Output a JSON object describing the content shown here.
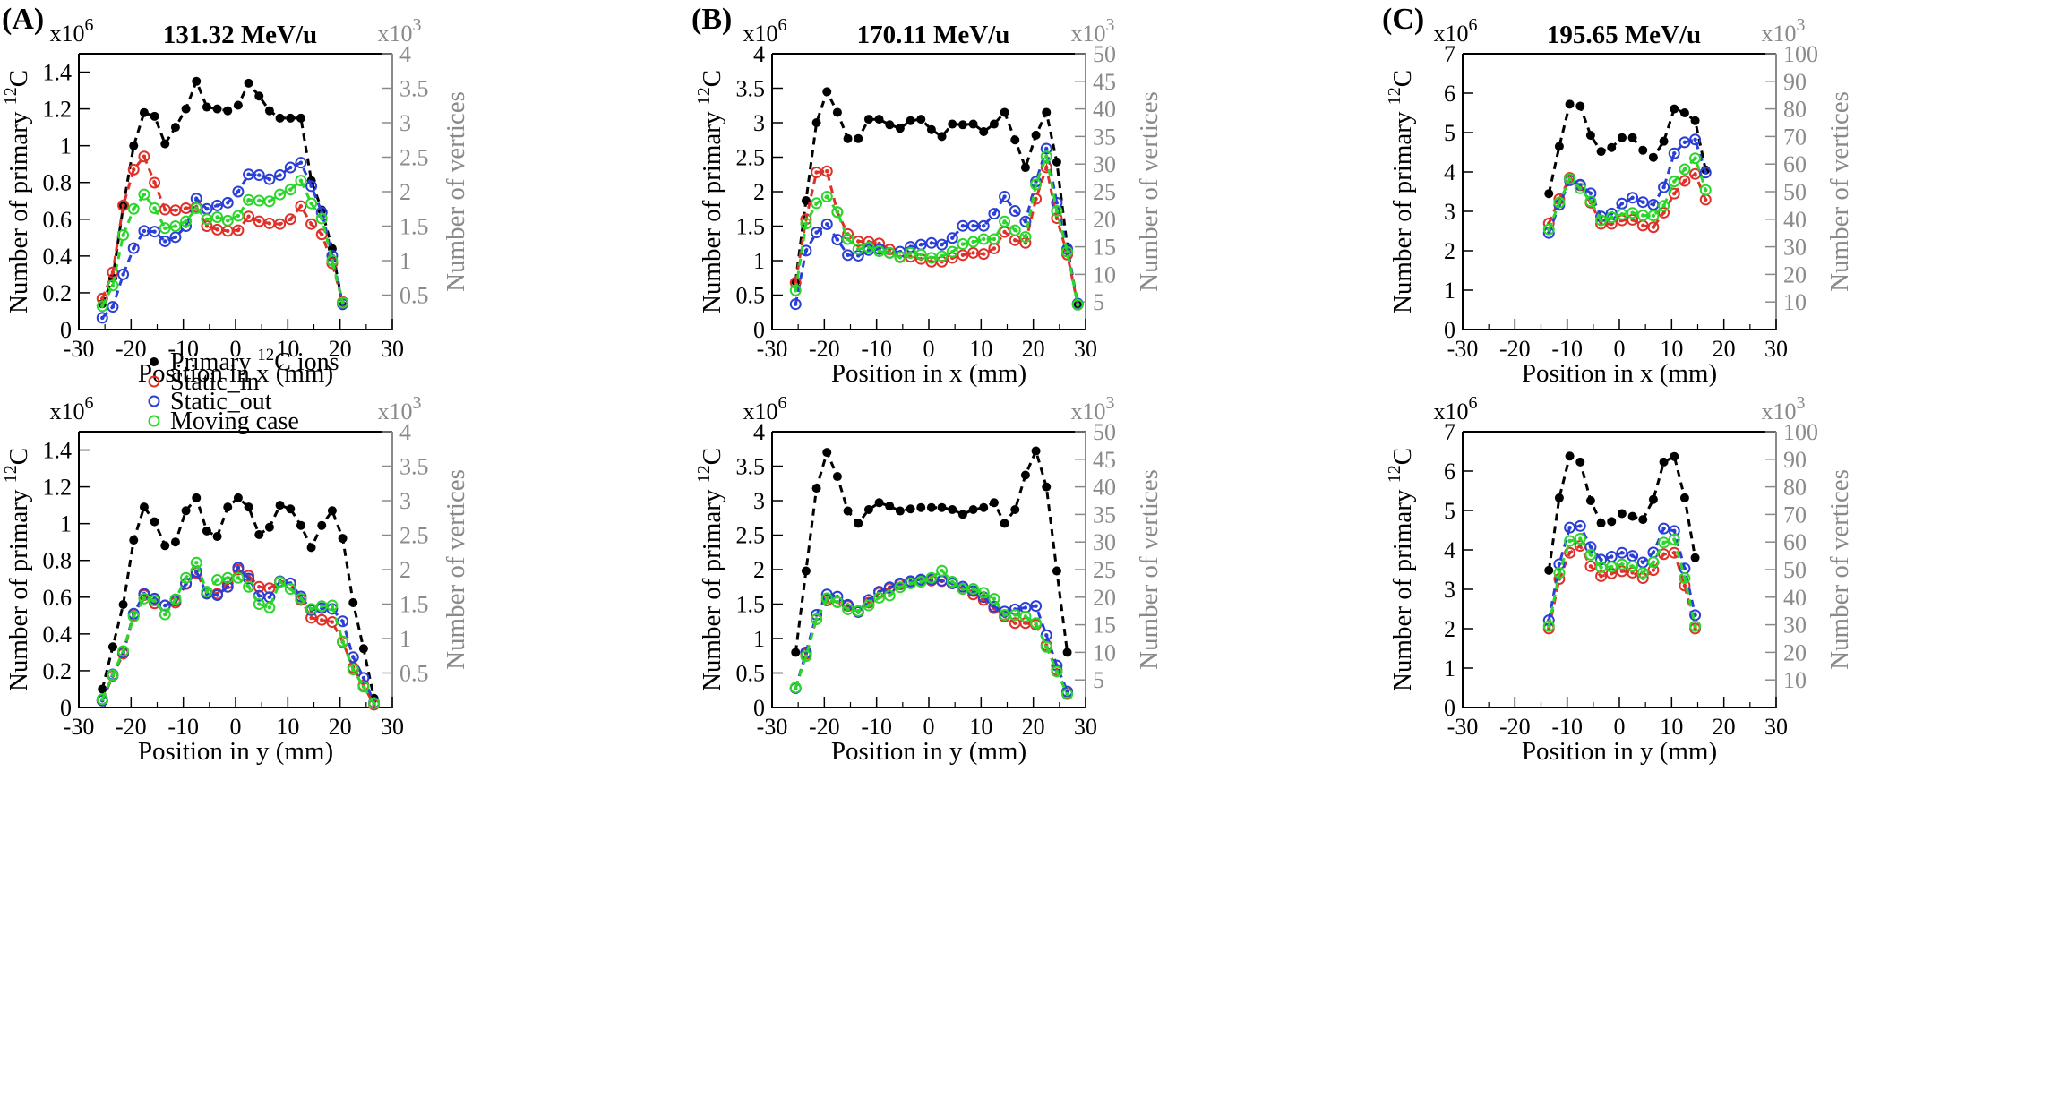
{
  "figure": {
    "panel_labels": [
      "(A)",
      "(B)",
      "(C)"
    ],
    "legend": [
      "Primary ¹²C ions",
      "Static_in",
      "Static_out",
      "Moving case"
    ],
    "colors": {
      "primary": "#000000",
      "static_in": "#e0302a",
      "static_out": "#2b3fd6",
      "moving": "#2bd62b",
      "right_axis": "#8a8a8a"
    }
  },
  "chart_data": [
    {
      "type": "line",
      "panel": "(A)",
      "title": "131.32 MeV/u",
      "xlabel": "Position in x (mm)",
      "ylabel": "Number of primary ¹²C",
      "y2label": "Number of vertices",
      "xlim": [
        -30,
        30
      ],
      "xticks": [
        -30,
        -20,
        -10,
        0,
        10,
        20,
        30
      ],
      "ylim": [
        0,
        1.5
      ],
      "yticks": [
        0,
        0.2,
        0.4,
        0.6,
        0.8,
        1,
        1.2,
        1.4
      ],
      "yexp": "x10⁶",
      "y2lim": [
        0,
        4
      ],
      "y2ticks": [
        0.5,
        1,
        1.5,
        2,
        2.5,
        3,
        3.5,
        4
      ],
      "y2exp": "x10³",
      "x": [
        -25.5,
        -23.5,
        -21.5,
        -19.5,
        -17.5,
        -15.5,
        -13.5,
        -11.5,
        -9.5,
        -7.5,
        -5.5,
        -3.5,
        -1.5,
        0.5,
        2.5,
        4.5,
        6.5,
        8.5,
        10.5,
        12.5,
        14.5,
        16.5,
        18.5,
        20.5
      ],
      "series": [
        {
          "name": "Primary ¹²C ions",
          "axis": "left",
          "values": [
            0.14,
            0.28,
            0.67,
            1.0,
            1.18,
            1.16,
            1.01,
            1.1,
            1.2,
            1.35,
            1.21,
            1.2,
            1.19,
            1.22,
            1.34,
            1.27,
            1.19,
            1.15,
            1.15,
            1.15,
            0.81,
            0.65,
            0.44,
            0.13
          ]
        },
        {
          "name": "Static_in",
          "axis": "right",
          "values": [
            0.45,
            0.83,
            1.8,
            2.32,
            2.51,
            2.13,
            1.74,
            1.73,
            1.76,
            1.78,
            1.5,
            1.45,
            1.43,
            1.44,
            1.64,
            1.57,
            1.54,
            1.53,
            1.6,
            1.79,
            1.53,
            1.38,
            0.96,
            0.4
          ]
        },
        {
          "name": "Static_out",
          "axis": "right",
          "values": [
            0.17,
            0.33,
            0.8,
            1.18,
            1.43,
            1.42,
            1.28,
            1.34,
            1.5,
            1.9,
            1.75,
            1.8,
            1.84,
            2.0,
            2.25,
            2.24,
            2.18,
            2.24,
            2.35,
            2.42,
            2.08,
            1.7,
            1.07,
            0.37
          ]
        },
        {
          "name": "Moving case",
          "axis": "right",
          "values": [
            0.34,
            0.64,
            1.37,
            1.75,
            1.96,
            1.76,
            1.47,
            1.5,
            1.57,
            1.76,
            1.6,
            1.63,
            1.58,
            1.65,
            1.88,
            1.87,
            1.86,
            1.96,
            2.03,
            2.16,
            1.83,
            1.61,
            1.0,
            0.39
          ]
        }
      ]
    },
    {
      "type": "line",
      "panel": "(B)",
      "title": "170.11 MeV/u",
      "xlabel": "Position in x (mm)",
      "ylabel": "Number of primary ¹²C",
      "y2label": "Number of vertices",
      "xlim": [
        -30,
        30
      ],
      "xticks": [
        -30,
        -20,
        -10,
        0,
        10,
        20,
        30
      ],
      "ylim": [
        0,
        4
      ],
      "yticks": [
        0,
        0.5,
        1,
        1.5,
        2,
        2.5,
        3,
        3.5,
        4
      ],
      "yexp": "x10⁶",
      "y2lim": [
        0,
        50
      ],
      "y2ticks": [
        5,
        10,
        15,
        20,
        25,
        30,
        35,
        40,
        45,
        50
      ],
      "y2exp": "x10³",
      "x": [
        -25.5,
        -23.5,
        -21.5,
        -19.5,
        -17.5,
        -15.5,
        -13.5,
        -11.5,
        -9.5,
        -7.5,
        -5.5,
        -3.5,
        -1.5,
        0.5,
        2.5,
        4.5,
        6.5,
        8.5,
        10.5,
        12.5,
        14.5,
        16.5,
        18.5,
        20.5,
        22.5,
        24.5,
        26.5,
        28.5
      ],
      "series": [
        {
          "name": "Primary ¹²C ions",
          "axis": "left",
          "values": [
            0.7,
            1.87,
            3.0,
            3.45,
            3.15,
            2.77,
            2.77,
            3.05,
            3.05,
            2.97,
            2.92,
            3.03,
            3.05,
            2.9,
            2.8,
            2.98,
            2.97,
            2.98,
            2.87,
            2.98,
            3.15,
            2.75,
            2.35,
            2.82,
            3.15,
            2.43,
            1.2,
            0.35
          ]
        },
        {
          "name": "Static_in",
          "axis": "right",
          "values": [
            8.5,
            20.0,
            28.5,
            28.7,
            21.3,
            17.3,
            16.0,
            15.9,
            15.6,
            14.5,
            13.2,
            13.2,
            12.8,
            12.3,
            12.3,
            13.0,
            13.5,
            13.9,
            13.7,
            14.7,
            17.7,
            16.2,
            15.7,
            23.7,
            29.4,
            20.2,
            13.6,
            4.5
          ]
        },
        {
          "name": "Static_out",
          "axis": "right",
          "values": [
            4.6,
            14.3,
            17.6,
            19.1,
            16.3,
            13.5,
            13.4,
            14.4,
            14.6,
            13.9,
            14.1,
            15.0,
            15.4,
            15.7,
            15.4,
            16.6,
            18.8,
            18.8,
            18.8,
            21.0,
            24.1,
            21.5,
            19.6,
            26.8,
            32.8,
            23.0,
            14.6,
            4.7
          ]
        },
        {
          "name": "Moving case",
          "axis": "right",
          "values": [
            7.1,
            19.2,
            22.9,
            24.1,
            21.3,
            16.4,
            14.6,
            14.9,
            14.2,
            13.9,
            13.1,
            13.9,
            13.6,
            13.0,
            13.3,
            14.1,
            15.5,
            15.9,
            16.4,
            16.4,
            19.6,
            18.0,
            16.8,
            26.3,
            31.4,
            21.5,
            14.1,
            4.5
          ]
        }
      ]
    },
    {
      "type": "line",
      "panel": "(C)",
      "title": "195.65 MeV/u",
      "xlabel": "Position in x (mm)",
      "ylabel": "Number of primary ¹²C",
      "y2label": "Number of vertices",
      "xlim": [
        -30,
        30
      ],
      "xticks": [
        -30,
        -20,
        -10,
        0,
        10,
        20,
        30
      ],
      "ylim": [
        0,
        7
      ],
      "yticks": [
        0,
        1,
        2,
        3,
        4,
        5,
        6,
        7
      ],
      "yexp": "x10⁶",
      "y2lim": [
        0,
        100
      ],
      "y2ticks": [
        10,
        20,
        30,
        40,
        50,
        60,
        70,
        80,
        90,
        100
      ],
      "y2exp": "x10³",
      "x": [
        -13.5,
        -11.5,
        -9.5,
        -7.5,
        -5.5,
        -3.5,
        -1.5,
        0.5,
        2.5,
        4.5,
        6.5,
        8.5,
        10.5,
        12.5,
        14.5,
        16.5
      ],
      "series": [
        {
          "name": "Primary ¹²C ions",
          "axis": "left",
          "values": [
            3.45,
            4.65,
            5.72,
            5.67,
            4.93,
            4.52,
            4.62,
            4.87,
            4.87,
            4.55,
            4.37,
            4.78,
            5.6,
            5.5,
            5.3,
            4.05
          ]
        },
        {
          "name": "Static_in",
          "axis": "right",
          "values": [
            38.5,
            47.3,
            55.0,
            52.3,
            46.0,
            38.3,
            38.3,
            39.6,
            39.8,
            37.7,
            37.1,
            42.4,
            49.3,
            53.9,
            56.4,
            47.1
          ]
        },
        {
          "name": "Static_out",
          "axis": "right",
          "values": [
            35.0,
            45.2,
            54.1,
            52.5,
            49.4,
            41.0,
            42.1,
            45.7,
            47.8,
            46.2,
            45.3,
            51.6,
            63.9,
            67.9,
            68.9,
            56.9
          ]
        },
        {
          "name": "Moving case",
          "axis": "right",
          "values": [
            36.3,
            46.1,
            54.6,
            51.2,
            46.5,
            39.6,
            40.7,
            41.8,
            42.3,
            41.4,
            41.3,
            44.9,
            53.7,
            58.1,
            62.1,
            50.6
          ]
        }
      ]
    },
    {
      "type": "line",
      "panel": "(A)",
      "title": "",
      "xlabel": "Position in y (mm)",
      "ylabel": "Number of primary ¹²C",
      "y2label": "Number of vertices",
      "xlim": [
        -30,
        30
      ],
      "xticks": [
        -30,
        -20,
        -10,
        0,
        10,
        20,
        30
      ],
      "ylim": [
        0,
        1.5
      ],
      "yticks": [
        0,
        0.2,
        0.4,
        0.6,
        0.8,
        1,
        1.2,
        1.4
      ],
      "yexp": "x10⁶",
      "y2lim": [
        0,
        4
      ],
      "y2ticks": [
        0.5,
        1,
        1.5,
        2,
        2.5,
        3,
        3.5,
        4
      ],
      "y2exp": "x10³",
      "x": [
        -25.5,
        -23.5,
        -21.5,
        -19.5,
        -17.5,
        -15.5,
        -13.5,
        -11.5,
        -9.5,
        -7.5,
        -5.5,
        -3.5,
        -1.5,
        0.5,
        2.5,
        4.5,
        6.5,
        8.5,
        10.5,
        12.5,
        14.5,
        16.5,
        18.5,
        20.5,
        22.5,
        24.5,
        26.5
      ],
      "series": [
        {
          "name": "Primary ¹²C ions",
          "axis": "left",
          "values": [
            0.1,
            0.33,
            0.56,
            0.91,
            1.09,
            1.01,
            0.88,
            0.9,
            1.07,
            1.14,
            0.96,
            0.93,
            1.09,
            1.14,
            1.09,
            0.94,
            0.98,
            1.1,
            1.08,
            0.99,
            0.87,
            0.99,
            1.07,
            0.92,
            0.57,
            0.32,
            0.05
          ]
        },
        {
          "name": "Static_in",
          "axis": "right",
          "values": [
            0.1,
            0.46,
            0.78,
            1.33,
            1.63,
            1.51,
            1.48,
            1.52,
            1.79,
            1.95,
            1.67,
            1.65,
            1.8,
            2.0,
            1.91,
            1.75,
            1.73,
            1.83,
            1.8,
            1.56,
            1.3,
            1.27,
            1.24,
            0.95,
            0.58,
            0.32,
            0.04
          ]
        },
        {
          "name": "Static_out",
          "axis": "right",
          "values": [
            0.1,
            0.48,
            0.8,
            1.36,
            1.65,
            1.58,
            1.48,
            1.55,
            1.8,
            1.97,
            1.65,
            1.63,
            1.75,
            2.03,
            1.87,
            1.62,
            1.6,
            1.83,
            1.8,
            1.61,
            1.41,
            1.44,
            1.43,
            1.25,
            0.73,
            0.43,
            0.07
          ]
        },
        {
          "name": "Moving case",
          "axis": "right",
          "values": [
            0.12,
            0.47,
            0.82,
            1.32,
            1.58,
            1.55,
            1.35,
            1.57,
            1.88,
            2.1,
            1.68,
            1.85,
            1.88,
            1.88,
            1.75,
            1.5,
            1.45,
            1.82,
            1.72,
            1.58,
            1.43,
            1.47,
            1.48,
            0.96,
            0.55,
            0.3,
            0.06
          ]
        }
      ]
    },
    {
      "type": "line",
      "panel": "(B)",
      "title": "",
      "xlabel": "Position in y (mm)",
      "ylabel": "Number of primary ¹²C",
      "y2label": "Number of vertices",
      "xlim": [
        -30,
        30
      ],
      "xticks": [
        -30,
        -20,
        -10,
        0,
        10,
        20,
        30
      ],
      "ylim": [
        0,
        4
      ],
      "yticks": [
        0,
        0.5,
        1,
        1.5,
        2,
        2.5,
        3,
        3.5,
        4
      ],
      "yexp": "x10⁶",
      "y2lim": [
        0,
        50
      ],
      "y2ticks": [
        5,
        10,
        15,
        20,
        25,
        30,
        35,
        40,
        45,
        50
      ],
      "y2exp": "x10³",
      "x": [
        -25.5,
        -23.5,
        -21.5,
        -19.5,
        -17.5,
        -15.5,
        -13.5,
        -11.5,
        -9.5,
        -7.5,
        -5.5,
        -3.5,
        -1.5,
        0.5,
        2.5,
        4.5,
        6.5,
        8.5,
        10.5,
        12.5,
        14.5,
        16.5,
        18.5,
        20.5,
        22.5,
        24.5,
        26.5
      ],
      "series": [
        {
          "name": "Primary ¹²C ions",
          "axis": "left",
          "values": [
            0.8,
            1.98,
            3.18,
            3.7,
            3.35,
            2.85,
            2.67,
            2.87,
            2.97,
            2.92,
            2.85,
            2.88,
            2.9,
            2.9,
            2.9,
            2.87,
            2.8,
            2.87,
            2.9,
            2.97,
            2.67,
            2.87,
            3.37,
            3.72,
            3.2,
            1.98,
            0.8
          ]
        },
        {
          "name": "Static_in",
          "axis": "right",
          "values": [
            3.5,
            9.7,
            16.0,
            19.4,
            19.1,
            18.4,
            17.3,
            19.0,
            20.8,
            21.6,
            22.3,
            22.6,
            23.0,
            23.0,
            22.9,
            22.5,
            21.5,
            20.5,
            19.5,
            18.0,
            16.5,
            15.3,
            15.3,
            15.0,
            11.3,
            6.8,
            2.5
          ]
        },
        {
          "name": "Static_out",
          "axis": "right",
          "values": [
            3.5,
            10.0,
            16.8,
            20.5,
            20.1,
            18.6,
            17.3,
            19.5,
            21.0,
            21.8,
            22.5,
            22.9,
            23.2,
            23.2,
            23.0,
            22.5,
            21.9,
            21.1,
            20.0,
            18.3,
            17.4,
            17.8,
            18.1,
            18.4,
            13.1,
            7.6,
            2.9
          ]
        },
        {
          "name": "Moving case",
          "axis": "right",
          "values": [
            3.6,
            9.3,
            16.0,
            19.8,
            19.1,
            17.8,
            17.5,
            18.5,
            19.9,
            20.3,
            21.8,
            22.5,
            22.8,
            23.5,
            24.8,
            22.8,
            21.5,
            21.5,
            20.8,
            19.7,
            16.8,
            16.8,
            16.5,
            15.3,
            11.0,
            6.5,
            2.4
          ]
        }
      ]
    },
    {
      "type": "line",
      "panel": "(C)",
      "title": "",
      "xlabel": "Position in y (mm)",
      "ylabel": "Number of primary ¹²C",
      "y2label": "Number of vertices",
      "xlim": [
        -30,
        30
      ],
      "xticks": [
        -30,
        -20,
        -10,
        0,
        10,
        20,
        30
      ],
      "ylim": [
        0,
        7
      ],
      "yticks": [
        0,
        1,
        2,
        3,
        4,
        5,
        6,
        7
      ],
      "yexp": "x10⁶",
      "y2lim": [
        0,
        100
      ],
      "y2ticks": [
        10,
        20,
        30,
        40,
        50,
        60,
        70,
        80,
        90,
        100
      ],
      "y2exp": "x10³",
      "x": [
        -13.5,
        -11.5,
        -9.5,
        -7.5,
        -5.5,
        -3.5,
        -1.5,
        0.5,
        2.5,
        4.5,
        6.5,
        8.5,
        10.5,
        12.5,
        14.5
      ],
      "series": [
        {
          "name": "Primary ¹²C ions",
          "axis": "left",
          "values": [
            3.48,
            5.32,
            6.38,
            6.23,
            5.25,
            4.68,
            4.72,
            4.92,
            4.85,
            4.77,
            5.28,
            6.23,
            6.37,
            5.32,
            3.8
          ]
        },
        {
          "name": "Static_in",
          "axis": "right",
          "values": [
            28.6,
            46.6,
            56.1,
            58.6,
            51.2,
            47.6,
            48.6,
            49.4,
            48.9,
            46.9,
            49.8,
            55.6,
            56.1,
            44.2,
            28.6
          ]
        },
        {
          "name": "Static_out",
          "axis": "right",
          "values": [
            31.6,
            52.0,
            65.2,
            65.8,
            58.2,
            53.6,
            54.7,
            56.1,
            55.0,
            52.6,
            56.2,
            64.9,
            64.0,
            50.4,
            33.5
          ]
        },
        {
          "name": "Moving case",
          "axis": "right",
          "values": [
            29.5,
            48.8,
            60.4,
            61.2,
            55.4,
            50.8,
            51.0,
            51.9,
            51.2,
            48.8,
            52.7,
            59.8,
            60.9,
            46.9,
            29.5
          ]
        }
      ]
    }
  ]
}
